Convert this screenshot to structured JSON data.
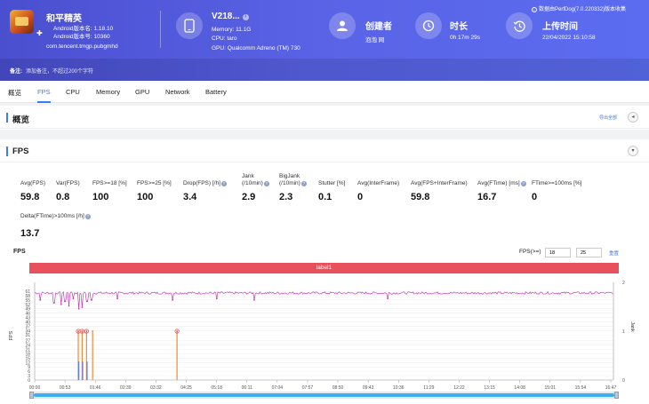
{
  "header": {
    "app": {
      "title": "和平精英",
      "version_line1": "Android版本名: 1.18.10",
      "version_line2": "Android版本号: 10360",
      "package": "com.tencent.tmgp.pubgmhd",
      "android_glyph": "✚"
    },
    "device": {
      "name": "V218...",
      "info_badge": "i",
      "memory": "Memory: 11.1G",
      "cpu": "CPU: taro",
      "gpu": "GPU: Qualcomm Adreno (TM) 730"
    },
    "creator": {
      "title": "创建者",
      "value": "泡泡 网"
    },
    "duration": {
      "title": "时长",
      "value": "0h 17m 29s"
    },
    "upload": {
      "title": "上传时间",
      "value": "22/04/2022 15:10:58"
    },
    "perfdog": "数据由PerfDog(7.0.220332)版本收集",
    "note_label": "备注:",
    "note_placeholder": "添加备注，不超过200个字符"
  },
  "tabs": [
    "概览",
    "FPS",
    "CPU",
    "Memory",
    "GPU",
    "Network",
    "Battery"
  ],
  "active_tab": "FPS",
  "overview": {
    "title": "概览",
    "export": "导出全部",
    "collapse_glyph": "◂"
  },
  "fps_panel": {
    "title": "FPS",
    "collapse_glyph": "▾",
    "metrics": [
      {
        "label": "Avg(FPS)",
        "value": "59.8"
      },
      {
        "label": "Var(FPS)",
        "value": "0.8"
      },
      {
        "label": "FPS>=18 [%]",
        "value": "100"
      },
      {
        "label": "FPS>=25 [%]",
        "value": "100"
      },
      {
        "label": "Drop(FPS) [/h]",
        "value": "3.4",
        "help": "?"
      },
      {
        "label": "Jank\n(/10min)",
        "value": "2.9",
        "help": "?"
      },
      {
        "label": "BigJank\n(/10min)",
        "value": "2.3",
        "help": "?"
      },
      {
        "label": "Stutter [%]",
        "value": "0.1"
      },
      {
        "label": "Avg(InterFrame)",
        "value": "0"
      },
      {
        "label": "Avg(FPS+InterFrame)",
        "value": "59.8"
      },
      {
        "label": "Avg(FTime) [ms]",
        "value": "16.7",
        "help": "?"
      },
      {
        "label": "FTime>=100ms [%]",
        "value": "0"
      },
      {
        "label": "Delta(FTime)>100ms [/h]",
        "value": "13.7",
        "help": "?"
      }
    ]
  },
  "chart": {
    "title": "FPS",
    "fps_filter_label": "FPS(>=)",
    "fps_filter_1": "18",
    "fps_filter_2": "25",
    "reset": "重置",
    "label_bar": "label1",
    "y_left_label": "FPS",
    "y_right_label": "Jank",
    "colors": {
      "fps": "#c63fb5",
      "jank": "#f0883a",
      "bigjank": "#5a7cf0",
      "marker": "#e8505b"
    }
  },
  "chart_data": {
    "type": "line",
    "title": "FPS",
    "ylabel": "FPS",
    "y2label": "Jank",
    "yticks": [
      "0",
      "3",
      "6",
      "9",
      "12",
      "15",
      "18",
      "21",
      "24",
      "27",
      "31",
      "34",
      "37",
      "40",
      "43",
      "46",
      "49",
      "52",
      "55",
      "58",
      "61"
    ],
    "y2ticks": [
      "0",
      "1",
      "2"
    ],
    "ylim": [
      0,
      61
    ],
    "y2lim": [
      0,
      2
    ],
    "xticks": [
      "00:00",
      "00:53",
      "01:46",
      "02:39",
      "03:32",
      "04:25",
      "05:18",
      "06:11",
      "07:04",
      "07:57",
      "08:50",
      "09:43",
      "10:36",
      "11:29",
      "12:22",
      "13:15",
      "14:08",
      "15:01",
      "15:54",
      "16:47"
    ],
    "x_range_seconds": [
      0,
      1049
    ],
    "series": [
      {
        "name": "FPS",
        "baseline": 59.8,
        "dips": [
          {
            "t": 10,
            "v": 55
          },
          {
            "t": 35,
            "v": 53
          },
          {
            "t": 48,
            "v": 52
          },
          {
            "t": 55,
            "v": 54
          },
          {
            "t": 62,
            "v": 51
          },
          {
            "t": 70,
            "v": 56
          },
          {
            "t": 80,
            "v": 49
          },
          {
            "t": 86,
            "v": 50
          },
          {
            "t": 95,
            "v": 54
          },
          {
            "t": 103,
            "v": 55
          },
          {
            "t": 150,
            "v": 56
          },
          {
            "t": 250,
            "v": 55
          },
          {
            "t": 330,
            "v": 56
          },
          {
            "t": 398,
            "v": 55
          },
          {
            "t": 640,
            "v": 56
          }
        ]
      }
    ],
    "jank_events": [
      {
        "t": 79,
        "type": "Jank+BigJank"
      },
      {
        "t": 86,
        "type": "Jank+BigJank"
      },
      {
        "t": 94,
        "type": "Jank+BigJank"
      },
      {
        "t": 105,
        "type": "Jank"
      },
      {
        "t": 258,
        "type": "Jank"
      }
    ]
  },
  "scrollbar": {
    "position": 0,
    "extent": 1
  }
}
